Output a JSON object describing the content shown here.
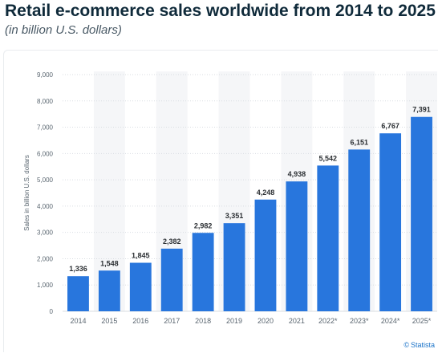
{
  "page": {
    "title": "Retail e-commerce sales worldwide from 2014 to 2025",
    "subtitle": "(in billion U.S. dollars)",
    "credit": "Statista",
    "credit_symbol": "©"
  },
  "colors": {
    "bar": "#2876dd",
    "band": "#f5f6f8",
    "grid": "#d9dde2",
    "tick_text": "#5a6670",
    "label_text": "#2b2f33"
  },
  "chart_data": {
    "type": "bar",
    "categories": [
      "2014",
      "2015",
      "2016",
      "2017",
      "2018",
      "2019",
      "2020",
      "2021",
      "2022*",
      "2023*",
      "2024*",
      "2025*"
    ],
    "values": [
      1336,
      1548,
      1845,
      2382,
      2982,
      3351,
      4248,
      4938,
      5542,
      6151,
      6767,
      7391
    ],
    "value_labels": [
      "1,336",
      "1,548",
      "1,845",
      "2,382",
      "2,982",
      "3,351",
      "4,248",
      "4,938",
      "5,542",
      "6,151",
      "6,767",
      "7,391"
    ],
    "y_ticks": [
      0,
      1000,
      2000,
      3000,
      4000,
      5000,
      6000,
      7000,
      8000,
      9000
    ],
    "y_tick_labels": [
      "0",
      "1,000",
      "2,000",
      "3,000",
      "4,000",
      "5,000",
      "6,000",
      "7,000",
      "8,000",
      "9,000"
    ],
    "ylim": [
      0,
      9000
    ],
    "xlabel": "",
    "ylabel": "Sales in billion U.S. dollars",
    "grid": true,
    "legend": false
  }
}
